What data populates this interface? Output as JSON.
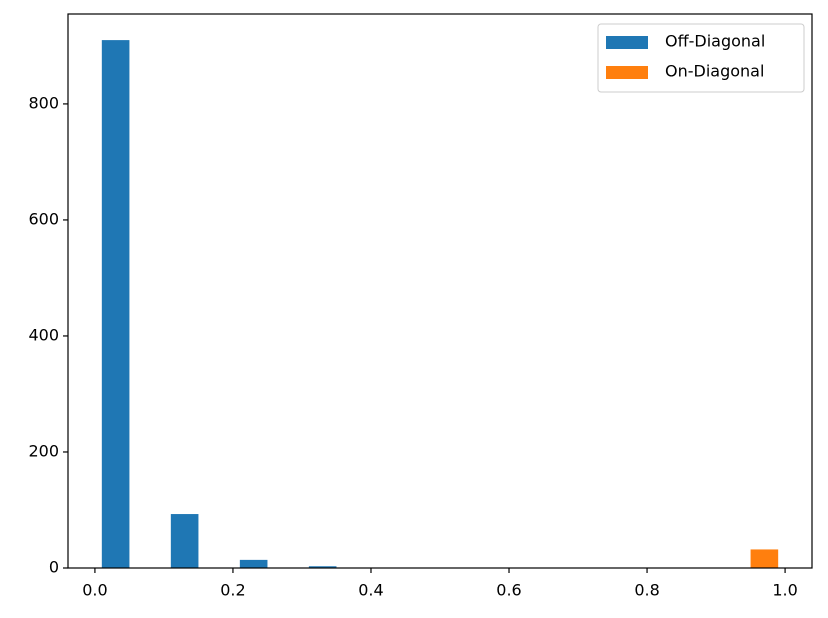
{
  "chart_data": {
    "type": "histogram",
    "bins": [
      0.0,
      0.1,
      0.2,
      0.3,
      0.4,
      0.5,
      0.6,
      0.7,
      0.8,
      0.9,
      1.0
    ],
    "series": [
      {
        "name": "Off-Diagonal",
        "color": "#1f77b4",
        "values": [
          910,
          93,
          14,
          3,
          0,
          0,
          0,
          0,
          0,
          0
        ]
      },
      {
        "name": "On-Diagonal",
        "color": "#ff7f0e",
        "values": [
          0,
          0,
          0,
          0,
          0,
          0,
          0,
          0,
          0,
          32
        ]
      }
    ],
    "xlim": [
      -0.039,
      1.039
    ],
    "ylim": [
      0,
      955
    ],
    "xticks": [
      {
        "value": 0,
        "label": "0.0"
      },
      0.2,
      0.4,
      0.6,
      0.8,
      {
        "value": 1,
        "label": "1.0"
      }
    ],
    "yticks": [
      0,
      200,
      400,
      600,
      800
    ],
    "legend": "upper right"
  }
}
